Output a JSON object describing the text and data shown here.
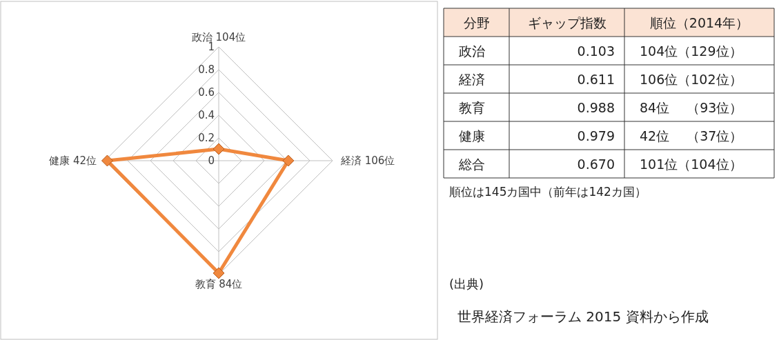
{
  "chart_data": [
    {
      "type": "radar",
      "categories": [
        "政治 104位",
        "経済 106位",
        "教育 84位",
        "健康 42位"
      ],
      "series": [
        {
          "color": "#f0883e",
          "values": [
            0.103,
            0.611,
            0.988,
            0.979
          ]
        }
      ],
      "ylim": [
        0,
        1
      ],
      "yticks": [
        0,
        0.2,
        0.4,
        0.6,
        0.8,
        1
      ],
      "grid": true,
      "marker": "diamond"
    },
    {
      "type": "other",
      "categories": [
        "分野",
        "ギャップ指数",
        "順位（2014年）"
      ],
      "cell_labels": [
        [
          "政治",
          "0.103",
          "104位（129位）"
        ],
        [
          "経済",
          "0.611",
          "106位（102位）"
        ],
        [
          "教育",
          "0.988",
          "84位　 （93位）"
        ],
        [
          "健康",
          "0.979",
          "42位　 （37位）"
        ],
        [
          "総合",
          "0.670",
          "101位（104位）"
        ]
      ],
      "annotations": [
        "順位は145カ国中（前年は142カ国）",
        "(出典)",
        "世界経済フォーラム 2015 資料から作成"
      ]
    }
  ]
}
